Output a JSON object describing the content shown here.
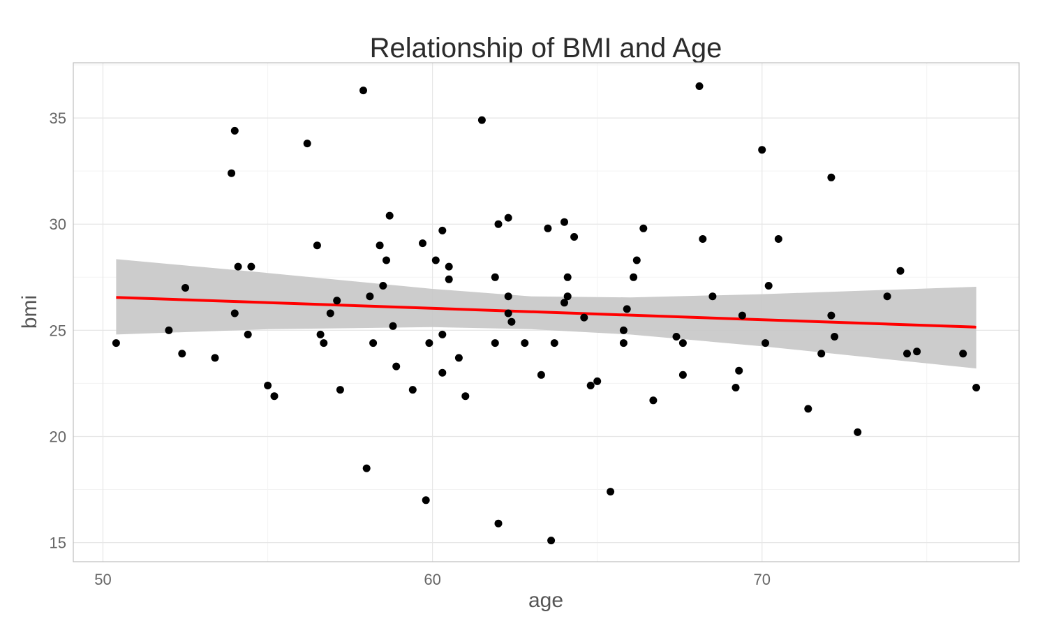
{
  "chart_data": {
    "type": "scatter",
    "title": "Relationship of BMI and Age",
    "xlabel": "age",
    "ylabel": "bmi",
    "xlim": [
      49.1,
      77.8
    ],
    "ylim": [
      14.1,
      37.6
    ],
    "x_ticks": [
      50,
      60,
      70
    ],
    "y_ticks": [
      15,
      20,
      25,
      30,
      35
    ],
    "grid": true,
    "legend": "none",
    "point_color": "#000000",
    "fit_line": {
      "color": "#ff0000",
      "points": [
        [
          50.4,
          26.55
        ],
        [
          76.5,
          25.15
        ]
      ]
    },
    "confidence_band": {
      "color": "#c8c8c8",
      "upper": [
        [
          50.4,
          28.35
        ],
        [
          55,
          27.7
        ],
        [
          60,
          26.95
        ],
        [
          63,
          26.6
        ],
        [
          66,
          26.55
        ],
        [
          70,
          26.7
        ],
        [
          76.5,
          27.05
        ]
      ],
      "lower": [
        [
          50.4,
          24.8
        ],
        [
          55,
          25.05
        ],
        [
          60,
          25.15
        ],
        [
          63,
          25.05
        ],
        [
          66,
          24.8
        ],
        [
          70,
          24.25
        ],
        [
          76.5,
          23.2
        ]
      ]
    },
    "points": [
      {
        "x": 50.4,
        "y": 24.4
      },
      {
        "x": 52.0,
        "y": 25.0
      },
      {
        "x": 52.4,
        "y": 23.9
      },
      {
        "x": 52.5,
        "y": 27.0
      },
      {
        "x": 53.4,
        "y": 23.7
      },
      {
        "x": 53.9,
        "y": 32.4
      },
      {
        "x": 54.0,
        "y": 34.4
      },
      {
        "x": 54.0,
        "y": 25.8
      },
      {
        "x": 54.1,
        "y": 28.0
      },
      {
        "x": 54.4,
        "y": 24.8
      },
      {
        "x": 54.5,
        "y": 28.0
      },
      {
        "x": 55.0,
        "y": 22.4
      },
      {
        "x": 55.2,
        "y": 21.9
      },
      {
        "x": 56.2,
        "y": 33.8
      },
      {
        "x": 56.5,
        "y": 29.0
      },
      {
        "x": 56.6,
        "y": 24.8
      },
      {
        "x": 56.7,
        "y": 24.4
      },
      {
        "x": 56.9,
        "y": 25.8
      },
      {
        "x": 57.1,
        "y": 26.4
      },
      {
        "x": 57.2,
        "y": 22.2
      },
      {
        "x": 57.9,
        "y": 36.3
      },
      {
        "x": 58.0,
        "y": 18.5
      },
      {
        "x": 58.1,
        "y": 26.6
      },
      {
        "x": 58.2,
        "y": 24.4
      },
      {
        "x": 58.4,
        "y": 29.0
      },
      {
        "x": 58.5,
        "y": 27.1
      },
      {
        "x": 58.6,
        "y": 28.3
      },
      {
        "x": 58.7,
        "y": 30.4
      },
      {
        "x": 58.8,
        "y": 25.2
      },
      {
        "x": 58.9,
        "y": 23.3
      },
      {
        "x": 59.4,
        "y": 22.2
      },
      {
        "x": 59.7,
        "y": 29.1
      },
      {
        "x": 59.8,
        "y": 17.0
      },
      {
        "x": 59.9,
        "y": 24.4
      },
      {
        "x": 60.1,
        "y": 28.3
      },
      {
        "x": 60.3,
        "y": 29.7
      },
      {
        "x": 60.3,
        "y": 24.8
      },
      {
        "x": 60.3,
        "y": 23.0
      },
      {
        "x": 60.5,
        "y": 28.0
      },
      {
        "x": 60.5,
        "y": 27.4
      },
      {
        "x": 60.8,
        "y": 23.7
      },
      {
        "x": 61.0,
        "y": 21.9
      },
      {
        "x": 61.5,
        "y": 34.9
      },
      {
        "x": 61.9,
        "y": 24.4
      },
      {
        "x": 61.9,
        "y": 27.5
      },
      {
        "x": 62.0,
        "y": 30.0
      },
      {
        "x": 62.0,
        "y": 15.9
      },
      {
        "x": 62.3,
        "y": 25.8
      },
      {
        "x": 62.3,
        "y": 30.3
      },
      {
        "x": 62.3,
        "y": 26.6
      },
      {
        "x": 62.4,
        "y": 25.4
      },
      {
        "x": 62.8,
        "y": 24.4
      },
      {
        "x": 63.3,
        "y": 22.9
      },
      {
        "x": 63.5,
        "y": 29.8
      },
      {
        "x": 63.6,
        "y": 15.1
      },
      {
        "x": 63.7,
        "y": 24.4
      },
      {
        "x": 64.0,
        "y": 30.1
      },
      {
        "x": 64.0,
        "y": 26.3
      },
      {
        "x": 64.1,
        "y": 27.5
      },
      {
        "x": 64.1,
        "y": 26.6
      },
      {
        "x": 64.3,
        "y": 29.4
      },
      {
        "x": 64.6,
        "y": 25.6
      },
      {
        "x": 64.8,
        "y": 22.4
      },
      {
        "x": 65.0,
        "y": 22.6
      },
      {
        "x": 65.4,
        "y": 17.4
      },
      {
        "x": 65.8,
        "y": 25.0
      },
      {
        "x": 65.8,
        "y": 24.4
      },
      {
        "x": 65.9,
        "y": 26.0
      },
      {
        "x": 66.1,
        "y": 27.5
      },
      {
        "x": 66.2,
        "y": 28.3
      },
      {
        "x": 66.4,
        "y": 29.8
      },
      {
        "x": 66.7,
        "y": 21.7
      },
      {
        "x": 67.4,
        "y": 24.7
      },
      {
        "x": 67.6,
        "y": 24.4
      },
      {
        "x": 67.6,
        "y": 22.9
      },
      {
        "x": 68.1,
        "y": 36.5
      },
      {
        "x": 68.2,
        "y": 29.3
      },
      {
        "x": 68.5,
        "y": 26.6
      },
      {
        "x": 69.2,
        "y": 22.3
      },
      {
        "x": 69.3,
        "y": 23.1
      },
      {
        "x": 69.4,
        "y": 25.7
      },
      {
        "x": 70.0,
        "y": 33.5
      },
      {
        "x": 70.1,
        "y": 24.4
      },
      {
        "x": 70.2,
        "y": 27.1
      },
      {
        "x": 70.5,
        "y": 29.3
      },
      {
        "x": 71.4,
        "y": 21.3
      },
      {
        "x": 71.8,
        "y": 23.9
      },
      {
        "x": 72.1,
        "y": 25.7
      },
      {
        "x": 72.1,
        "y": 32.2
      },
      {
        "x": 72.2,
        "y": 24.7
      },
      {
        "x": 72.9,
        "y": 20.2
      },
      {
        "x": 73.8,
        "y": 26.6
      },
      {
        "x": 74.2,
        "y": 27.8
      },
      {
        "x": 74.4,
        "y": 23.9
      },
      {
        "x": 74.7,
        "y": 24.0
      },
      {
        "x": 76.1,
        "y": 23.9
      },
      {
        "x": 76.5,
        "y": 22.3
      }
    ]
  }
}
